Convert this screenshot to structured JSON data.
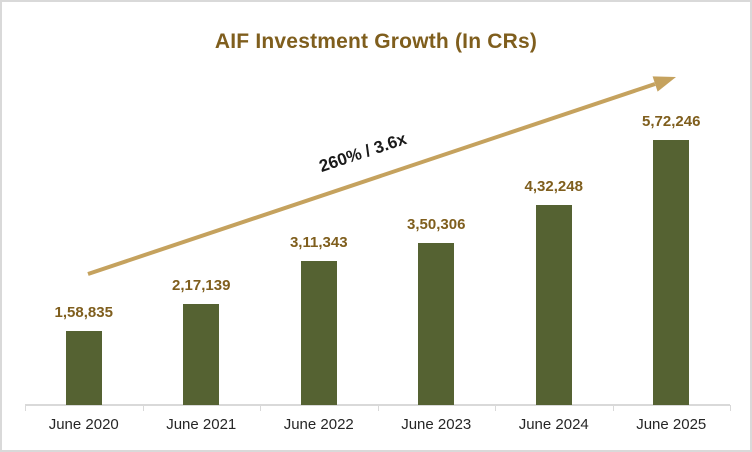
{
  "colors": {
    "bar": "#556232",
    "accent-text": "#7F5E1D",
    "arrow": "#C5A25E",
    "axis": "#D9D9D9",
    "label-text": "#262626",
    "annotation-text": "#1A1A1A",
    "frame-border": "#D9D9D9",
    "bg": "#FFFFFF"
  },
  "chart_data": {
    "type": "bar",
    "title": "AIF Investment Growth (In CRs)",
    "categories": [
      "June 2020",
      "June 2021",
      "June 2022",
      "June 2023",
      "June 2024",
      "June 2025"
    ],
    "values": [
      158835,
      217139,
      311343,
      350306,
      432248,
      572246
    ],
    "value_labels": [
      "1,58,835",
      "2,17,139",
      "3,11,343",
      "3,50,306",
      "4,32,248",
      "5,72,246"
    ],
    "annotation": "260% / 3.6x",
    "xlabel": "",
    "ylabel": "",
    "ylim": [
      0,
      600000
    ],
    "grid": false,
    "legend": false,
    "bar_color_name": "dark-olive-green",
    "unit": "CRs"
  }
}
